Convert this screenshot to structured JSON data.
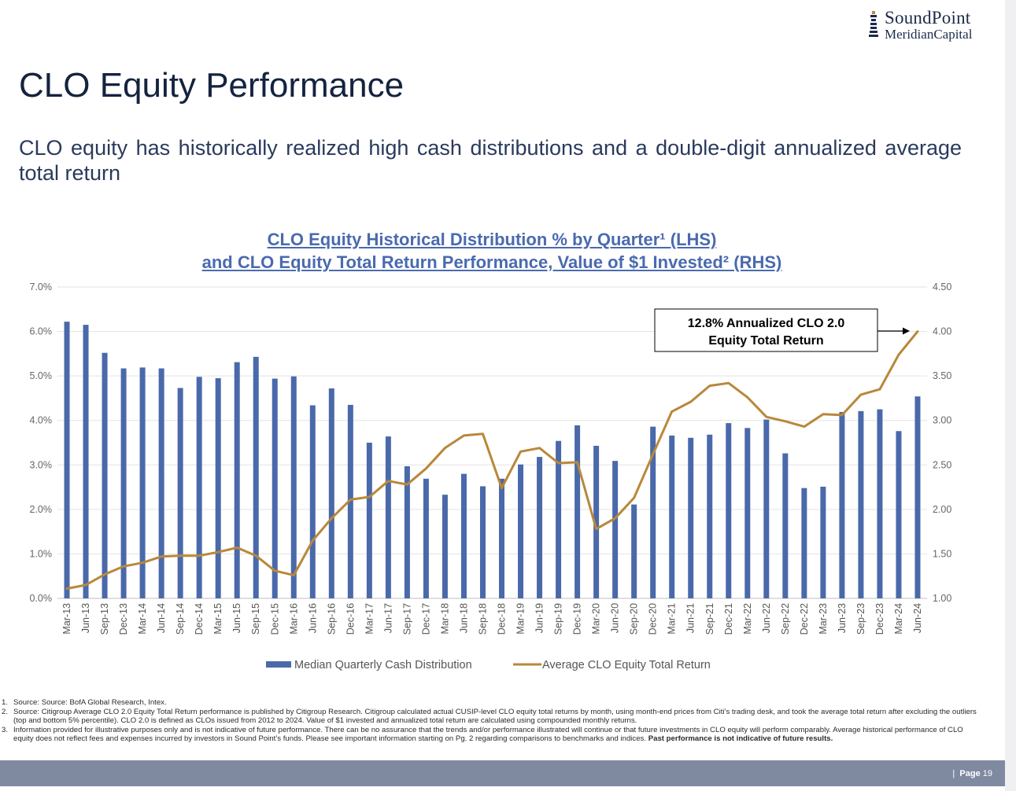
{
  "header": {
    "logo_name": "SoundPoint",
    "logo_sub": "MeridianCapital",
    "page_title": "CLO Equity Performance",
    "subtitle": "CLO equity has historically realized high cash distributions and a double-digit annualized average total return"
  },
  "chart_data": {
    "type": "bar+line",
    "title_line1": "CLO Equity Historical Distribution % by Quarter¹ (LHS)",
    "title_line2": "and CLO Equity Total Return Performance, Value of $1 Invested² (RHS)",
    "categories": [
      "Mar-13",
      "Jun-13",
      "Sep-13",
      "Dec-13",
      "Mar-14",
      "Jun-14",
      "Sep-14",
      "Dec-14",
      "Mar-15",
      "Jun-15",
      "Sep-15",
      "Dec-15",
      "Mar-16",
      "Jun-16",
      "Sep-16",
      "Dec-16",
      "Mar-17",
      "Jun-17",
      "Sep-17",
      "Dec-17",
      "Mar-18",
      "Jun-18",
      "Sep-18",
      "Dec-18",
      "Mar-19",
      "Jun-19",
      "Sep-19",
      "Dec-19",
      "Mar-20",
      "Jun-20",
      "Sep-20",
      "Dec-20",
      "Mar-21",
      "Jun-21",
      "Sep-21",
      "Dec-21",
      "Mar-22",
      "Jun-22",
      "Sep-22",
      "Dec-22",
      "Mar-23",
      "Jun-23",
      "Sep-23",
      "Dec-23",
      "Mar-24",
      "Jun-24"
    ],
    "series": [
      {
        "name": "Median Quarterly Cash Distribution",
        "type": "bar",
        "axis": "left",
        "color": "#4a69ab",
        "values": [
          6.22,
          6.15,
          5.52,
          5.17,
          5.19,
          5.17,
          4.73,
          4.98,
          4.95,
          5.31,
          5.43,
          4.94,
          4.99,
          4.34,
          4.72,
          4.35,
          3.5,
          3.64,
          2.97,
          2.69,
          2.33,
          2.8,
          2.52,
          2.69,
          3.01,
          3.18,
          3.54,
          3.89,
          3.43,
          3.09,
          2.11,
          3.86,
          3.66,
          3.61,
          3.68,
          3.94,
          3.83,
          4.02,
          3.26,
          2.48,
          2.51,
          4.19,
          4.21,
          4.25,
          3.76,
          4.54
        ]
      },
      {
        "name": "Average CLO Equity Total Return",
        "type": "line",
        "axis": "right",
        "color": "#b8883a",
        "values": [
          1.11,
          1.15,
          1.27,
          1.36,
          1.4,
          1.47,
          1.48,
          1.48,
          1.52,
          1.57,
          1.48,
          1.31,
          1.26,
          1.65,
          1.9,
          2.11,
          2.14,
          2.32,
          2.28,
          2.46,
          2.69,
          2.83,
          2.85,
          2.24,
          2.65,
          2.69,
          2.52,
          2.53,
          1.78,
          1.9,
          2.13,
          2.62,
          3.1,
          3.21,
          3.39,
          3.42,
          3.26,
          3.04,
          2.99,
          2.93,
          3.07,
          3.06,
          3.29,
          3.35,
          3.74,
          4.0
        ]
      }
    ],
    "y_left": {
      "min": 0,
      "max": 7,
      "ticks": [
        "0.0%",
        "1.0%",
        "2.0%",
        "3.0%",
        "4.0%",
        "5.0%",
        "6.0%",
        "7.0%"
      ]
    },
    "y_right": {
      "min": 1.0,
      "max": 4.5,
      "ticks": [
        "1.00",
        "1.50",
        "2.00",
        "2.50",
        "3.00",
        "3.50",
        "4.00",
        "4.50"
      ]
    },
    "grid": "horizontal",
    "legend_position": "bottom",
    "annotation": {
      "line1": "12.8% Annualized CLO 2.0",
      "line2": "Equity Total Return"
    }
  },
  "footnotes": [
    {
      "num": "1.",
      "text": "Source: Source: BofA Global Research, Intex."
    },
    {
      "num": "2.",
      "text": "Source: Citigroup Average CLO 2.0 Equity Total Return performance is published by Citigroup Research. Citigroup calculated actual CUSIP-level CLO equity total returns by month, using month-end prices from Citi’s trading desk, and took the average total return after excluding the outliers (top and bottom 5% percentile). CLO 2.0 is defined as CLOs issued from 2012 to 2024. Value of $1 invested and annualized total return are calculated using compounded monthly returns."
    },
    {
      "num": "3.",
      "text": "Information provided for illustrative purposes only and is not indicative of future performance. There can be no assurance that the trends and/or performance illustrated will continue or that future investments in CLO equity will perform comparably. Average historical performance of CLO equity does not reflect fees and expenses incurred by investors in Sound Point’s funds. Please see important information starting on Pg. 2 regarding comparisons to benchmarks and indices.",
      "bold": "Past performance is not indicative of future results."
    }
  ],
  "footer": {
    "separator": "|",
    "page_label": "Page",
    "page_number": "19"
  },
  "colors": {
    "navy": "#1c2b4a",
    "bar": "#4a69ab",
    "line": "#b8883a",
    "title_blue": "#4a6aaf",
    "footer": "#7f8aa1"
  }
}
